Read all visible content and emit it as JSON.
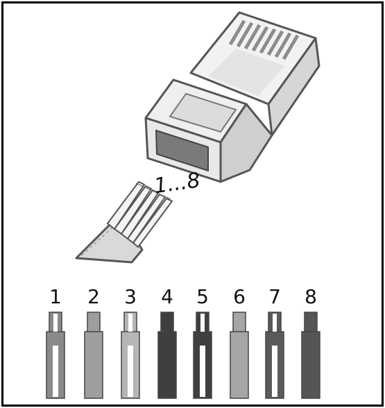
{
  "range_label": "1...8",
  "wires": [
    {
      "label": "1",
      "striped": true,
      "color": "#8a8a8a"
    },
    {
      "label": "2",
      "striped": false,
      "color": "#9e9e9e"
    },
    {
      "label": "3",
      "striped": true,
      "color": "#b5b5b5"
    },
    {
      "label": "4",
      "striped": false,
      "color": "#3f3f3f"
    },
    {
      "label": "5",
      "striped": true,
      "color": "#3f3f3f"
    },
    {
      "label": "6",
      "striped": false,
      "color": "#a6a6a6"
    },
    {
      "label": "7",
      "striped": true,
      "color": "#5a5a5a"
    },
    {
      "label": "8",
      "striped": false,
      "color": "#555555"
    }
  ]
}
